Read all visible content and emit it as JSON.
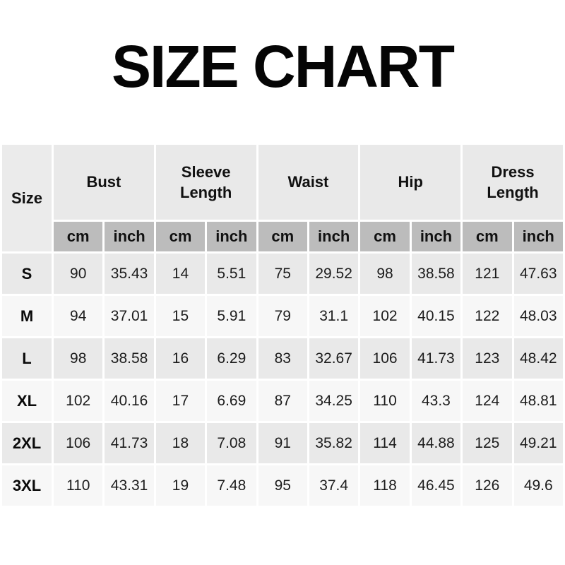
{
  "title": "SIZE CHART",
  "chart_data": {
    "type": "table",
    "title": "SIZE CHART",
    "size_column_header": "Size",
    "groups": [
      "Bust",
      "Sleeve Length",
      "Waist",
      "Hip",
      "Dress Length"
    ],
    "unit_row": [
      "cm",
      "inch",
      "cm",
      "inch",
      "cm",
      "inch",
      "cm",
      "inch",
      "cm",
      "inch"
    ],
    "rows": [
      {
        "size": "S",
        "values": [
          "90",
          "35.43",
          "14",
          "5.51",
          "75",
          "29.52",
          "98",
          "38.58",
          "121",
          "47.63"
        ]
      },
      {
        "size": "M",
        "values": [
          "94",
          "37.01",
          "15",
          "5.91",
          "79",
          "31.1",
          "102",
          "40.15",
          "122",
          "48.03"
        ]
      },
      {
        "size": "L",
        "values": [
          "98",
          "38.58",
          "16",
          "6.29",
          "83",
          "32.67",
          "106",
          "41.73",
          "123",
          "48.42"
        ]
      },
      {
        "size": "XL",
        "values": [
          "102",
          "40.16",
          "17",
          "6.69",
          "87",
          "34.25",
          "110",
          "43.3",
          "124",
          "48.81"
        ]
      },
      {
        "size": "2XL",
        "values": [
          "106",
          "41.73",
          "18",
          "7.08",
          "91",
          "35.82",
          "114",
          "44.88",
          "125",
          "49.21"
        ]
      },
      {
        "size": "3XL",
        "values": [
          "110",
          "43.31",
          "19",
          "7.48",
          "95",
          "37.4",
          "118",
          "46.45",
          "126",
          "49.6"
        ]
      }
    ]
  },
  "colors": {
    "group_header_bg": "#e9e9e9",
    "unit_header_bg": "#bcbcbc",
    "row_odd_bg": "#e9e9e9",
    "row_even_bg": "#f7f7f7",
    "text": "#111111",
    "page_bg": "#ffffff"
  }
}
